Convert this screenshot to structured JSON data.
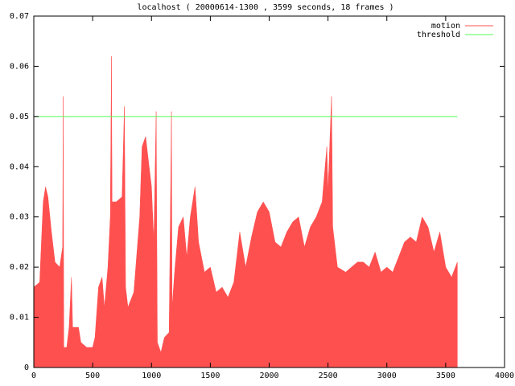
{
  "chart_data": {
    "type": "area",
    "title": "localhost ( 20000614-1300 , 3599 seconds, 18 frames )",
    "xlim": [
      0,
      4000
    ],
    "xticks": [
      0,
      500,
      1000,
      1500,
      2000,
      2500,
      3000,
      3500,
      4000
    ],
    "ylim": [
      0,
      0.07
    ],
    "yticks": [
      0,
      0.01,
      0.02,
      0.03,
      0.04,
      0.05,
      0.06,
      0.07
    ],
    "legend": "top-right",
    "series": [
      {
        "name": "motion",
        "color": "#ff5050",
        "x": [
          0,
          50,
          80,
          100,
          120,
          150,
          180,
          220,
          245,
          250,
          255,
          280,
          300,
          320,
          330,
          380,
          400,
          450,
          500,
          520,
          550,
          580,
          600,
          630,
          650,
          660,
          665,
          700,
          750,
          770,
          780,
          800,
          850,
          900,
          920,
          950,
          980,
          1000,
          1020,
          1040,
          1050,
          1080,
          1110,
          1150,
          1170,
          1175,
          1200,
          1230,
          1270,
          1300,
          1330,
          1370,
          1400,
          1450,
          1500,
          1550,
          1600,
          1650,
          1700,
          1750,
          1800,
          1850,
          1900,
          1950,
          2000,
          2050,
          2100,
          2150,
          2200,
          2250,
          2300,
          2350,
          2400,
          2450,
          2490,
          2500,
          2530,
          2540,
          2580,
          2650,
          2700,
          2750,
          2800,
          2850,
          2900,
          2950,
          3000,
          3050,
          3100,
          3150,
          3200,
          3250,
          3300,
          3350,
          3400,
          3450,
          3500,
          3550,
          3599
        ],
        "values": [
          0.016,
          0.017,
          0.033,
          0.036,
          0.034,
          0.027,
          0.021,
          0.02,
          0.024,
          0.054,
          0.004,
          0.004,
          0.008,
          0.018,
          0.008,
          0.008,
          0.005,
          0.004,
          0.004,
          0.006,
          0.016,
          0.018,
          0.012,
          0.02,
          0.03,
          0.062,
          0.033,
          0.033,
          0.034,
          0.052,
          0.016,
          0.012,
          0.015,
          0.03,
          0.044,
          0.046,
          0.04,
          0.036,
          0.025,
          0.051,
          0.005,
          0.003,
          0.006,
          0.007,
          0.051,
          0.012,
          0.02,
          0.028,
          0.03,
          0.022,
          0.03,
          0.036,
          0.025,
          0.019,
          0.02,
          0.015,
          0.016,
          0.014,
          0.017,
          0.027,
          0.02,
          0.026,
          0.031,
          0.033,
          0.031,
          0.025,
          0.024,
          0.027,
          0.029,
          0.03,
          0.024,
          0.028,
          0.03,
          0.033,
          0.044,
          0.035,
          0.054,
          0.028,
          0.02,
          0.019,
          0.02,
          0.021,
          0.021,
          0.02,
          0.023,
          0.019,
          0.02,
          0.019,
          0.022,
          0.025,
          0.026,
          0.025,
          0.03,
          0.028,
          0.023,
          0.027,
          0.02,
          0.018,
          0.021
        ]
      },
      {
        "name": "threshold",
        "color": "#50ff50",
        "x": [
          0,
          3599
        ],
        "values": [
          0.05,
          0.05
        ]
      }
    ]
  }
}
